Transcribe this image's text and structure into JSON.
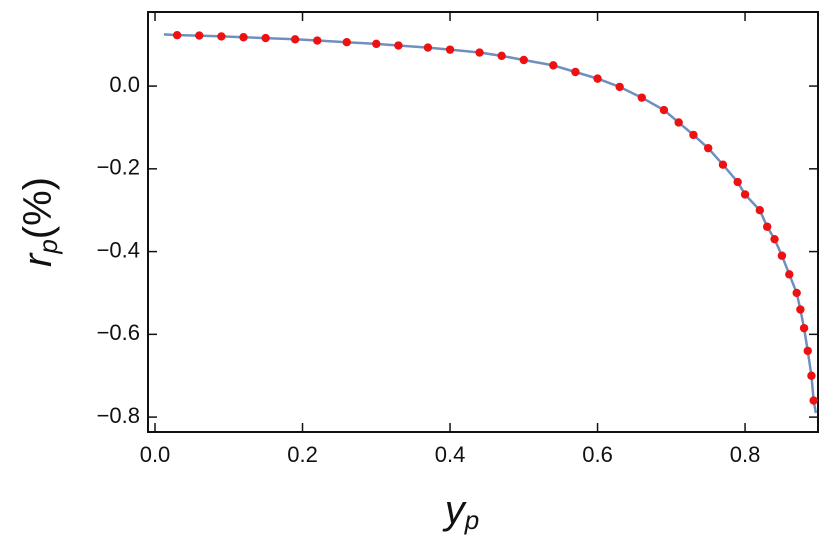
{
  "chart_data": {
    "type": "scatter",
    "xlabel": "y",
    "xlabel_sub": "p",
    "ylabel": "r",
    "ylabel_sub": "p",
    "ylabel_suffix": "(%)",
    "xlim": [
      -0.0095,
      0.8989
    ],
    "ylim": [
      -0.836,
      0.179
    ],
    "xticks": [
      {
        "value": 0,
        "label": "0.0"
      },
      {
        "value": 0.2,
        "label": "0.2"
      },
      {
        "value": 0.4,
        "label": "0.4"
      },
      {
        "value": 0.6,
        "label": "0.6"
      },
      {
        "value": 0.8,
        "label": "0.8"
      }
    ],
    "yticks": [
      {
        "value": 0,
        "label": "0.0"
      },
      {
        "value": -0.2,
        "label": "−0.2"
      },
      {
        "value": -0.4,
        "label": "−0.4"
      },
      {
        "value": -0.6,
        "label": "−0.6"
      },
      {
        "value": -0.8,
        "label": "−0.8"
      }
    ],
    "line": {
      "color": "#6f8fbf",
      "x": [
        0.012,
        0.03,
        0.06,
        0.09,
        0.12,
        0.15,
        0.19,
        0.22,
        0.26,
        0.3,
        0.33,
        0.37,
        0.4,
        0.44,
        0.47,
        0.5,
        0.54,
        0.57,
        0.6,
        0.63,
        0.66,
        0.69,
        0.71,
        0.73,
        0.75,
        0.77,
        0.79,
        0.8,
        0.82,
        0.83,
        0.84,
        0.85,
        0.86,
        0.87,
        0.875,
        0.88,
        0.885,
        0.89,
        0.893,
        0.896
      ],
      "values": [
        0.125,
        0.123,
        0.122,
        0.12,
        0.118,
        0.116,
        0.113,
        0.11,
        0.106,
        0.102,
        0.098,
        0.093,
        0.088,
        0.081,
        0.073,
        0.063,
        0.05,
        0.034,
        0.018,
        -0.002,
        -0.028,
        -0.058,
        -0.088,
        -0.118,
        -0.15,
        -0.19,
        -0.232,
        -0.262,
        -0.3,
        -0.34,
        -0.37,
        -0.41,
        -0.455,
        -0.5,
        -0.54,
        -0.585,
        -0.64,
        -0.7,
        -0.76,
        -0.79
      ]
    },
    "points": {
      "color": "#ee1111",
      "x": [
        0.03,
        0.06,
        0.09,
        0.12,
        0.15,
        0.19,
        0.22,
        0.26,
        0.3,
        0.33,
        0.37,
        0.4,
        0.44,
        0.47,
        0.5,
        0.54,
        0.57,
        0.6,
        0.63,
        0.66,
        0.69,
        0.71,
        0.73,
        0.75,
        0.77,
        0.79,
        0.8,
        0.82,
        0.83,
        0.84,
        0.85,
        0.86,
        0.87,
        0.875,
        0.88,
        0.885,
        0.89,
        0.893
      ],
      "values": [
        0.123,
        0.122,
        0.12,
        0.118,
        0.116,
        0.113,
        0.11,
        0.106,
        0.102,
        0.098,
        0.093,
        0.088,
        0.081,
        0.073,
        0.063,
        0.05,
        0.034,
        0.018,
        -0.002,
        -0.028,
        -0.058,
        -0.088,
        -0.118,
        -0.15,
        -0.19,
        -0.232,
        -0.262,
        -0.3,
        -0.34,
        -0.37,
        -0.41,
        -0.455,
        -0.5,
        -0.54,
        -0.585,
        -0.64,
        -0.7,
        -0.76
      ]
    }
  }
}
